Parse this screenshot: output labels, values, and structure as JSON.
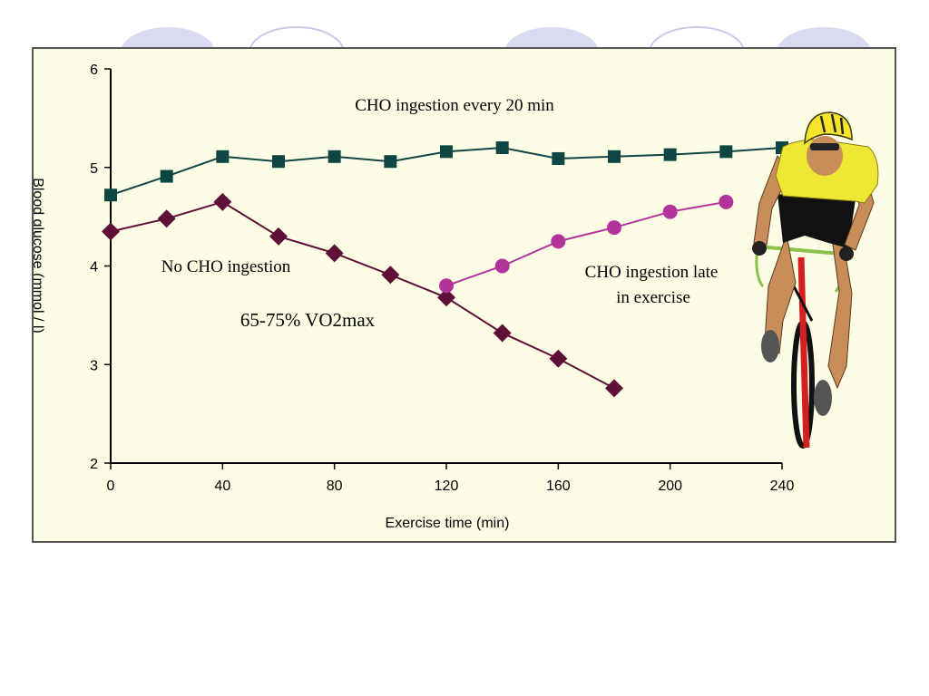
{
  "colors": {
    "series_every20": "#0e4644",
    "series_none": "#5e1036",
    "series_late": "#b2349a",
    "panel_bg": "#fdfce5",
    "decor_circle": "#d9dbf2"
  },
  "chart_data": {
    "type": "line",
    "xlabel": "Exercise time (min)",
    "ylabel": "Blood glucose (mmol / l)",
    "xlim": [
      0,
      240
    ],
    "ylim": [
      2,
      6
    ],
    "xticks": [
      0,
      40,
      80,
      120,
      160,
      200,
      240
    ],
    "yticks": [
      2,
      3,
      4,
      5,
      6
    ],
    "grid": false,
    "series": [
      {
        "key": "every20",
        "marker": "square",
        "x": [
          0,
          20,
          40,
          60,
          80,
          100,
          120,
          140,
          160,
          180,
          200,
          220,
          240
        ],
        "y": [
          4.72,
          4.91,
          5.11,
          5.06,
          5.11,
          5.06,
          5.16,
          5.2,
          5.09,
          5.11,
          5.13,
          5.16,
          5.2
        ]
      },
      {
        "key": "none",
        "marker": "diamond",
        "x": [
          0,
          20,
          40,
          60,
          80,
          100,
          120,
          140,
          160,
          180
        ],
        "y": [
          4.35,
          4.48,
          4.65,
          4.3,
          4.13,
          3.91,
          3.68,
          3.32,
          3.06,
          2.76
        ]
      },
      {
        "key": "late",
        "marker": "circle",
        "x": [
          120,
          140,
          160,
          180,
          200,
          220
        ],
        "y": [
          3.8,
          4.0,
          4.25,
          4.39,
          4.55,
          4.65
        ]
      }
    ],
    "annotations": {
      "every20": "CHO ingestion every 20 min",
      "none": "No CHO ingestion",
      "late_line1": "CHO ingestion late",
      "late_line2": "in exercise",
      "intensity": "65-75% VO2max"
    }
  },
  "illustration": {
    "name": "cyclist"
  }
}
